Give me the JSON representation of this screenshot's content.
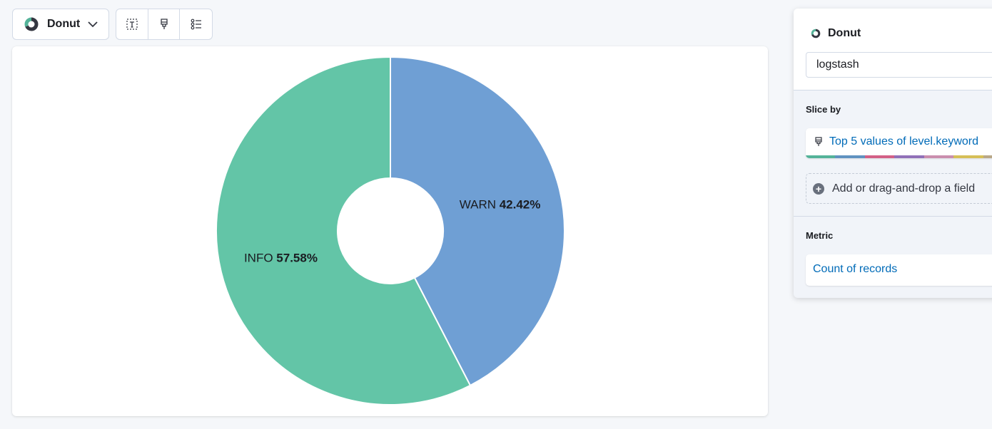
{
  "toolbar": {
    "chart_type_label": "Donut",
    "icons": [
      "text-icon",
      "brush-icon",
      "legend-list-icon"
    ]
  },
  "chart_data": {
    "type": "pie",
    "variant": "donut",
    "slices": [
      {
        "label": "WARN",
        "percent_label": "42.42%",
        "value": 42.42,
        "color": "#6f9fd4"
      },
      {
        "label": "INFO",
        "percent_label": "57.58%",
        "value": 57.58,
        "color": "#63c5a7"
      }
    ]
  },
  "sidebar": {
    "title": "Donut",
    "index_pattern": "logstash",
    "slice_by_title": "Slice by",
    "slice_by_value": "Top 5 values of level.keyword",
    "add_field_label": "Add or drag-and-drop a field",
    "metric_title": "Metric",
    "metric_value": "Count of records",
    "palette": [
      "#54b399",
      "#6092c0",
      "#d36086",
      "#9170b8",
      "#ca8eae",
      "#d6bf57",
      "#b9a888"
    ]
  }
}
